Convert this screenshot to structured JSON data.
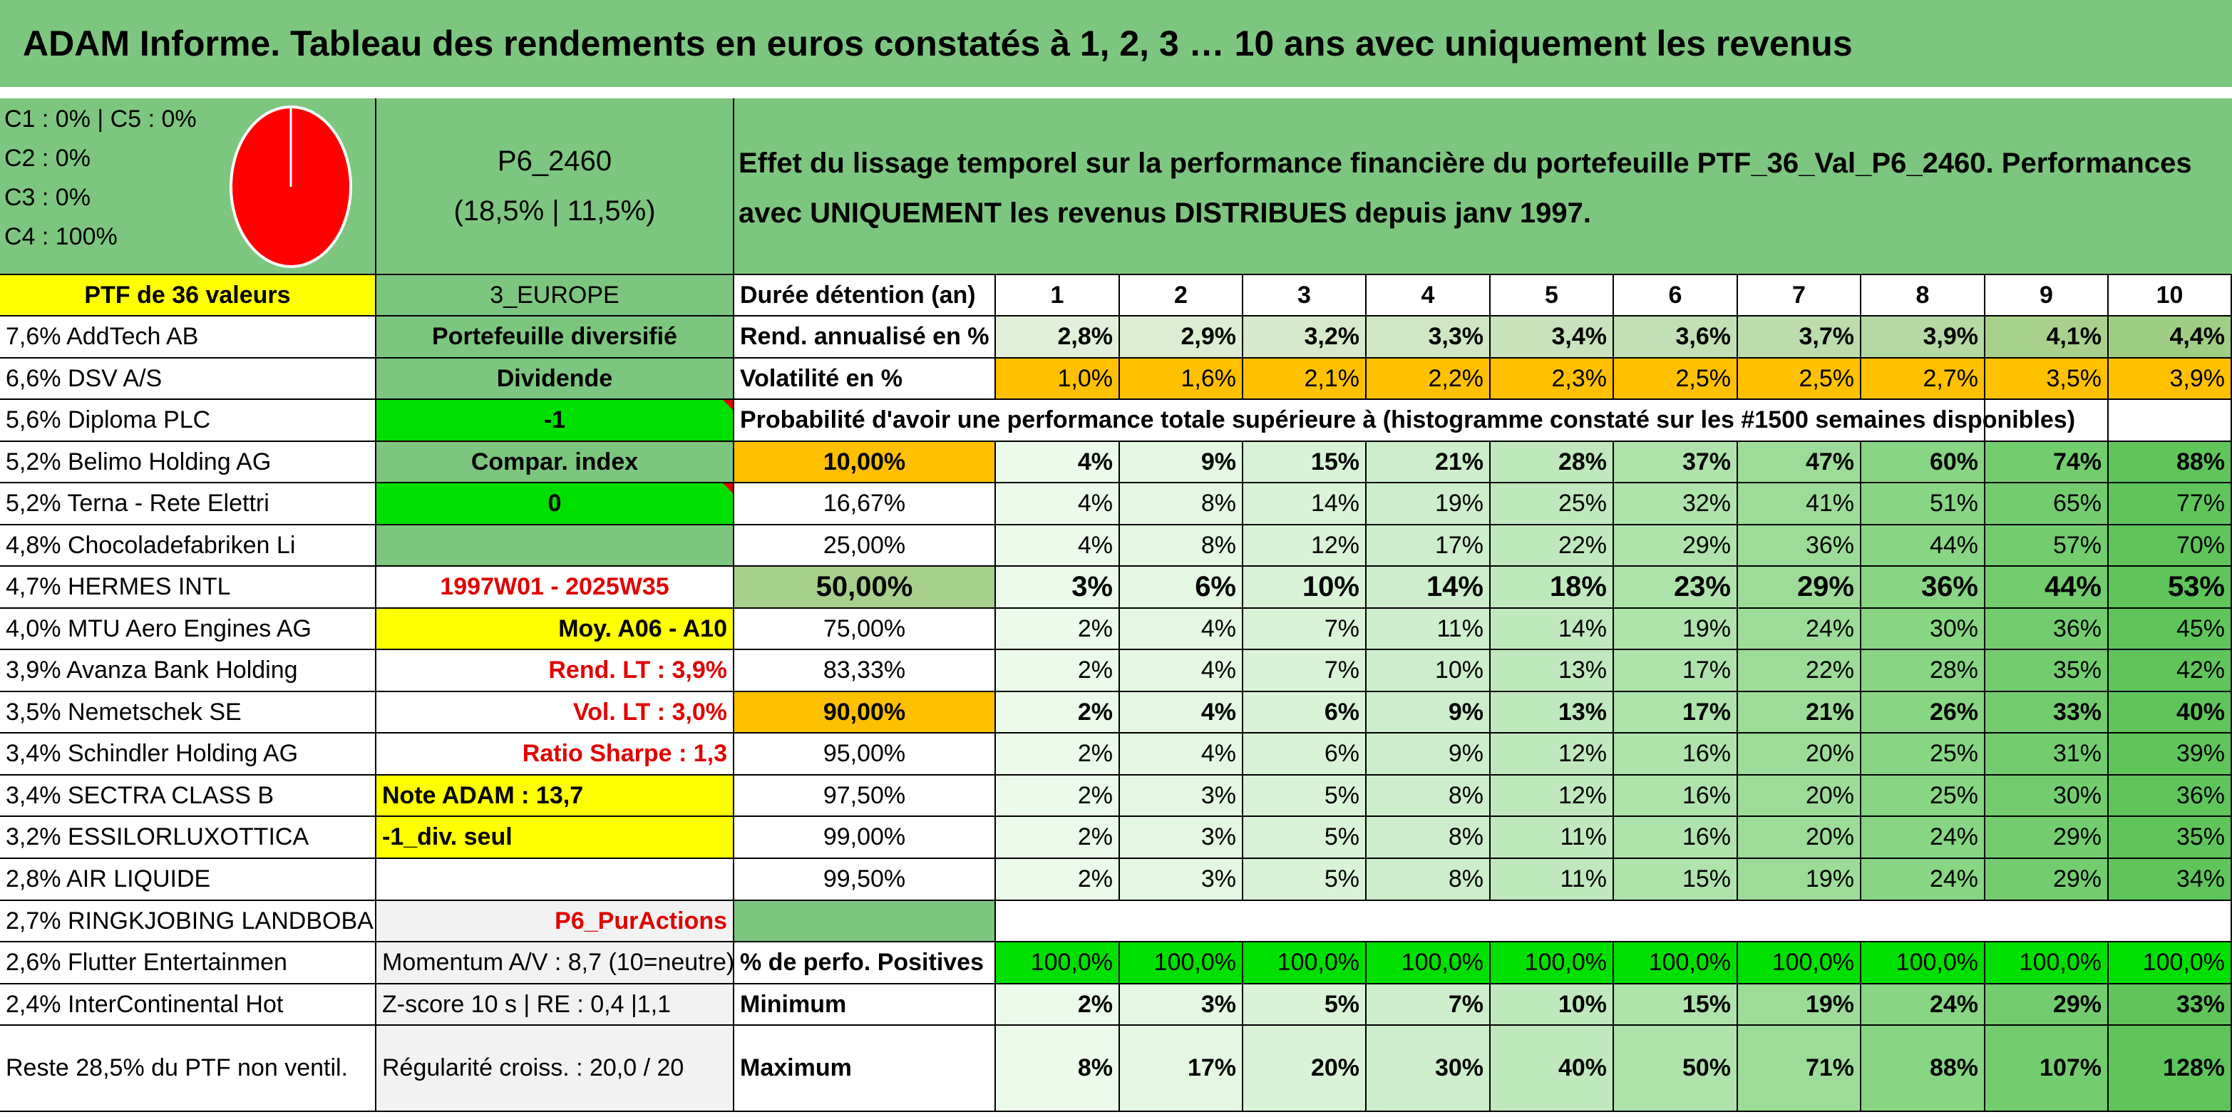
{
  "title": "ADAM Informe. Tableau des rendements en euros constatés à 1, 2, 3 … 10 ans avec uniquement les revenus",
  "composition": {
    "line1": "C1 : 0% | C5 : 0%",
    "line2": "C2 : 0%",
    "line3": "C3 : 0%",
    "line4": "C4 : 100%",
    "pie_color": "#ff0000",
    "c4_share": 1.0
  },
  "portfolio": {
    "code": "P6_2460",
    "returns": "(18,5% | 11,5%)"
  },
  "description": "Effet du lissage temporel sur la performance financière du portefeuille PTF_36_Val_P6_2460. Performances avec UNIQUEMENT les revenus DISTRIBUES depuis janv 1997.",
  "ptf_label": "PTF de 36 valeurs",
  "holdings": [
    "7,6% AddTech AB",
    "6,6% DSV A/S",
    "5,6% Diploma PLC",
    "5,2% Belimo Holding AG",
    "5,2% Terna - Rete Elettri",
    "4,8% Chocoladefabriken Li",
    "4,7% HERMES INTL",
    "4,0% MTU Aero Engines AG",
    "3,9% Avanza Bank Holding",
    "3,5% Nemetschek SE",
    "3,4% Schindler Holding AG",
    "3,4% SECTRA CLASS B",
    "3,2% ESSILORLUXOTTICA",
    "2,8% AIR LIQUIDE",
    "2,7% RINGKJOBING LANDBOBA",
    "2,6% Flutter Entertainmen",
    "2,4% InterContinental Hot",
    "Reste 28,5% du PTF non ventil."
  ],
  "info": {
    "region": "3_EUROPE",
    "type": "Portefeuille diversifié",
    "style": "Dividende",
    "value1": "-1",
    "compar": "Compar. index",
    "value0": "0",
    "blank": "",
    "period": "1997W01 - 2025W35",
    "moy": "Moy. A06 - A10",
    "rend_lt": "Rend. LT : 3,9%",
    "vol_lt": "Vol. LT : 3,0%",
    "sharpe": "Ratio Sharpe : 1,3",
    "note": "Note ADAM : 13,7",
    "div": "-1_div. seul",
    "blank2": "",
    "puractions": "P6_PurActions",
    "momentum": "Momentum A/V : 8,7 (10=neutre)",
    "zscore": "Z-score 10 s | RE : 0,4 |1,1",
    "regularite": "Régularité croiss. : 20,0 / 20"
  },
  "table": {
    "duration_label": "Durée détention (an)",
    "years": [
      "1",
      "2",
      "3",
      "4",
      "5",
      "6",
      "7",
      "8",
      "9",
      "10"
    ],
    "rend_label": "Rend. annualisé en %",
    "rend": [
      "2,8%",
      "2,9%",
      "3,2%",
      "3,3%",
      "3,4%",
      "3,6%",
      "3,7%",
      "3,9%",
      "4,1%",
      "4,4%"
    ],
    "vol_label": "Volatilité en %",
    "vol": [
      "1,0%",
      "1,6%",
      "2,1%",
      "2,2%",
      "2,3%",
      "2,5%",
      "2,5%",
      "2,7%",
      "3,5%",
      "3,9%"
    ],
    "prob_header": "Probabilité d'avoir une performance totale supérieure à (histogramme constaté sur les #1500 semaines disponibles)",
    "prob_rows": [
      {
        "p": "10,00%",
        "v": [
          "4%",
          "9%",
          "15%",
          "21%",
          "28%",
          "37%",
          "47%",
          "60%",
          "74%",
          "88%"
        ]
      },
      {
        "p": "16,67%",
        "v": [
          "4%",
          "8%",
          "14%",
          "19%",
          "25%",
          "32%",
          "41%",
          "51%",
          "65%",
          "77%"
        ]
      },
      {
        "p": "25,00%",
        "v": [
          "4%",
          "8%",
          "12%",
          "17%",
          "22%",
          "29%",
          "36%",
          "44%",
          "57%",
          "70%"
        ]
      },
      {
        "p": "50,00%",
        "v": [
          "3%",
          "6%",
          "10%",
          "14%",
          "18%",
          "23%",
          "29%",
          "36%",
          "44%",
          "53%"
        ]
      },
      {
        "p": "75,00%",
        "v": [
          "2%",
          "4%",
          "7%",
          "11%",
          "14%",
          "19%",
          "24%",
          "30%",
          "36%",
          "45%"
        ]
      },
      {
        "p": "83,33%",
        "v": [
          "2%",
          "4%",
          "7%",
          "10%",
          "13%",
          "17%",
          "22%",
          "28%",
          "35%",
          "42%"
        ]
      },
      {
        "p": "90,00%",
        "v": [
          "2%",
          "4%",
          "6%",
          "9%",
          "13%",
          "17%",
          "21%",
          "26%",
          "33%",
          "40%"
        ]
      },
      {
        "p": "95,00%",
        "v": [
          "2%",
          "4%",
          "6%",
          "9%",
          "12%",
          "16%",
          "20%",
          "25%",
          "31%",
          "39%"
        ]
      },
      {
        "p": "97,50%",
        "v": [
          "2%",
          "3%",
          "5%",
          "8%",
          "12%",
          "16%",
          "20%",
          "25%",
          "30%",
          "36%"
        ]
      },
      {
        "p": "99,00%",
        "v": [
          "2%",
          "3%",
          "5%",
          "8%",
          "11%",
          "16%",
          "20%",
          "24%",
          "29%",
          "35%"
        ]
      },
      {
        "p": "99,50%",
        "v": [
          "2%",
          "3%",
          "5%",
          "8%",
          "11%",
          "15%",
          "19%",
          "24%",
          "29%",
          "34%"
        ]
      }
    ],
    "pos_label": "% de perfo. Positives",
    "pos": [
      "100,0%",
      "100,0%",
      "100,0%",
      "100,0%",
      "100,0%",
      "100,0%",
      "100,0%",
      "100,0%",
      "100,0%",
      "100,0%"
    ],
    "min_label": "Minimum",
    "min": [
      "2%",
      "3%",
      "5%",
      "7%",
      "10%",
      "15%",
      "19%",
      "24%",
      "29%",
      "33%"
    ],
    "max_label": "Maximum",
    "max": [
      "8%",
      "17%",
      "20%",
      "30%",
      "40%",
      "50%",
      "71%",
      "88%",
      "107%",
      "128%"
    ]
  }
}
